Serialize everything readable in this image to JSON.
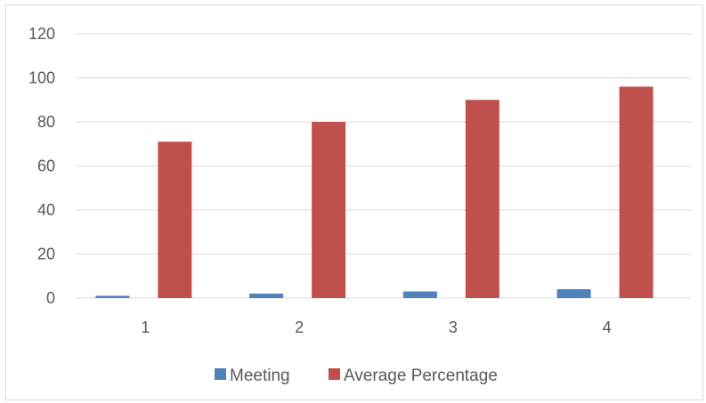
{
  "chart_data": {
    "type": "bar",
    "categories": [
      "1",
      "2",
      "3",
      "4"
    ],
    "series": [
      {
        "name": "Meeting",
        "values": [
          1,
          2,
          3,
          4
        ],
        "color": "#4f81bd"
      },
      {
        "name": "Average Percentage",
        "values": [
          71,
          80,
          90,
          96
        ],
        "color": "#c0504d"
      }
    ],
    "ylim": [
      0,
      120
    ],
    "yticks": [
      0,
      20,
      40,
      60,
      80,
      100,
      120
    ],
    "ytick_labels": [
      "0",
      "20",
      "40",
      "60",
      "80",
      "100",
      "120"
    ],
    "grid": true,
    "legend_position": "bottom",
    "gridline_color": "#d9d9d9"
  }
}
